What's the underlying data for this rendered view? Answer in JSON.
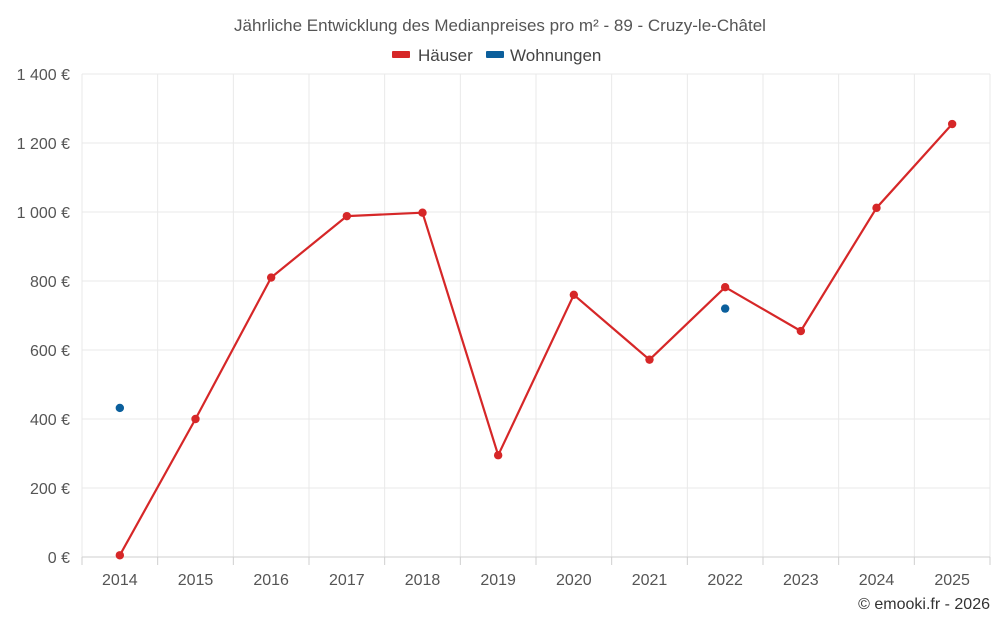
{
  "chart_data": {
    "type": "line",
    "title": "Jährliche Entwicklung des Medianpreises pro m² - 89 - Cruzy-le-Châtel",
    "x": [
      "2014",
      "2015",
      "2016",
      "2017",
      "2018",
      "2019",
      "2020",
      "2021",
      "2022",
      "2023",
      "2024",
      "2025"
    ],
    "ylim": [
      0,
      1400
    ],
    "yticks": [
      0,
      200,
      400,
      600,
      800,
      1000,
      1200,
      1400
    ],
    "ytick_labels": [
      "0 €",
      "200 €",
      "400 €",
      "600 €",
      "800 €",
      "1 000 €",
      "1 200 €",
      "1 400 €"
    ],
    "grid": true,
    "legend_position": "top-center",
    "series": [
      {
        "name": "Häuser",
        "color": "#d62728",
        "mode": "lines+markers",
        "values": [
          5,
          400,
          810,
          988,
          998,
          295,
          760,
          572,
          782,
          655,
          1012,
          1255
        ]
      },
      {
        "name": "Wohnungen",
        "color": "#0b5f9c",
        "mode": "markers",
        "values": [
          432,
          null,
          null,
          null,
          null,
          null,
          null,
          null,
          720,
          null,
          null,
          null
        ]
      }
    ]
  },
  "credit": "© emooki.fr - 2026"
}
